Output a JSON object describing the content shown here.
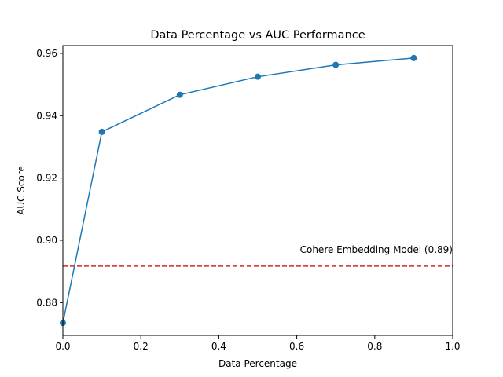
{
  "chart_data": {
    "type": "line",
    "title": "Data Percentage vs AUC Performance",
    "xlabel": "Data Percentage",
    "ylabel": "AUC Score",
    "xlim": [
      0.0,
      1.0
    ],
    "ylim": [
      0.8695,
      0.9625
    ],
    "xticks": [
      0.0,
      0.2,
      0.4,
      0.6,
      0.8,
      1.0
    ],
    "xtick_labels": [
      "0.0",
      "0.2",
      "0.4",
      "0.6",
      "0.8",
      "1.0"
    ],
    "yticks": [
      0.88,
      0.9,
      0.92,
      0.94,
      0.96
    ],
    "ytick_labels": [
      "0.88",
      "0.90",
      "0.92",
      "0.94",
      "0.96"
    ],
    "grid": false,
    "series": [
      {
        "x": [
          0.0,
          0.1,
          0.3,
          0.5,
          0.7,
          0.9
        ],
        "values": [
          0.8735,
          0.9348,
          0.9467,
          0.9525,
          0.9563,
          0.9585
        ],
        "color": "#1f77b4",
        "marker": "circle"
      }
    ],
    "reference_line": {
      "orientation": "horizontal",
      "y": 0.8917,
      "color": "#d62728",
      "style": "dashed",
      "label": "Cohere Embedding Model (0.89)"
    }
  }
}
